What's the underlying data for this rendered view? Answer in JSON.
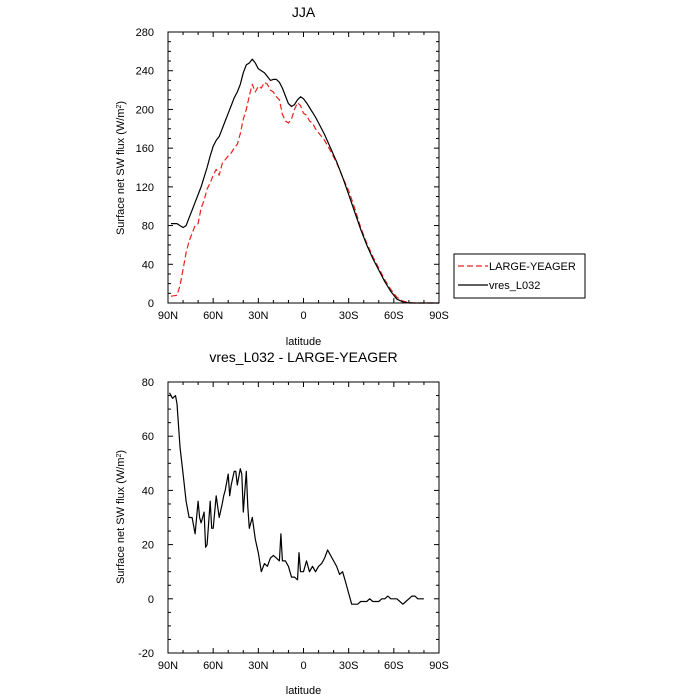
{
  "chart_data": [
    {
      "type": "line",
      "title": "JJA",
      "xlabel": "latitude",
      "ylabel": "Surface net SW flux (W/m",
      "ylabel_sup": "2",
      "ylabel_end": ")",
      "xlim": [
        90,
        -90
      ],
      "ylim": [
        0,
        280
      ],
      "x_ticks": [
        90,
        60,
        30,
        0,
        -30,
        -60,
        -90
      ],
      "x_tick_labels": [
        "90N",
        "60N",
        "30N",
        "0",
        "30S",
        "60S",
        "90S"
      ],
      "y_ticks": [
        0,
        40,
        80,
        120,
        160,
        200,
        240,
        280
      ],
      "y_tick_labels": [
        "0",
        "40",
        "80",
        "120",
        "160",
        "200",
        "240",
        "280"
      ],
      "legend": "outside-right",
      "series": [
        {
          "name": "LARGE-YEAGER",
          "color": "#e8231f",
          "dash": "dashed",
          "x": [
            88,
            84,
            82,
            80,
            78,
            76,
            74,
            72,
            70,
            68,
            66,
            64,
            62,
            60,
            58,
            56,
            54,
            52,
            50,
            48,
            46,
            44,
            42,
            40,
            38,
            36,
            34,
            32,
            30,
            28,
            26,
            24,
            22,
            20,
            18,
            16,
            14,
            12,
            10,
            8,
            6,
            4,
            2,
            0,
            -2,
            -4,
            -6,
            -8,
            -10,
            -14,
            -18,
            -22,
            -26,
            -30,
            -34,
            -38,
            -42,
            -46,
            -50,
            -54,
            -58,
            -62,
            -66,
            -70,
            -74,
            -78,
            -82,
            -86,
            -90
          ],
          "y": [
            7,
            8,
            18,
            35,
            52,
            64,
            72,
            80,
            82,
            98,
            106,
            118,
            124,
            132,
            138,
            132,
            144,
            148,
            152,
            155,
            160,
            164,
            175,
            190,
            200,
            214,
            226,
            218,
            224,
            222,
            228,
            226,
            220,
            218,
            213,
            210,
            195,
            188,
            186,
            190,
            200,
            207,
            204,
            196,
            194,
            188,
            186,
            180,
            176,
            168,
            157,
            145,
            130,
            116,
            98,
            78,
            62,
            48,
            36,
            24,
            14,
            6,
            2,
            0.5,
            0,
            0,
            0,
            0,
            0
          ]
        },
        {
          "name": "vres_L032",
          "color": "#000000",
          "dash": "solid",
          "x": [
            88,
            86,
            84,
            82,
            80,
            78,
            76,
            74,
            72,
            70,
            68,
            66,
            64,
            62,
            60,
            58,
            56,
            54,
            52,
            50,
            48,
            46,
            44,
            42,
            40,
            38,
            36,
            34,
            32,
            30,
            28,
            26,
            24,
            22,
            20,
            18,
            16,
            14,
            12,
            10,
            8,
            6,
            4,
            2,
            0,
            -2,
            -4,
            -6,
            -8,
            -10,
            -14,
            -18,
            -22,
            -26,
            -30,
            -34,
            -38,
            -42,
            -46,
            -50,
            -54,
            -58,
            -62,
            -66,
            -70,
            -74,
            -78,
            -82,
            -86,
            -90
          ],
          "y": [
            82,
            82,
            82,
            80,
            78,
            80,
            88,
            96,
            104,
            112,
            120,
            130,
            140,
            152,
            162,
            168,
            172,
            180,
            188,
            196,
            204,
            212,
            218,
            226,
            238,
            246,
            248,
            252,
            248,
            242,
            240,
            238,
            234,
            230,
            231,
            231,
            228,
            222,
            214,
            206,
            203,
            205,
            210,
            213,
            211,
            207,
            202,
            197,
            192,
            186,
            174,
            160,
            146,
            130,
            112,
            94,
            76,
            60,
            46,
            34,
            22,
            12,
            4,
            1,
            0,
            0,
            0,
            0,
            0,
            0
          ]
        }
      ]
    },
    {
      "type": "line",
      "title": "vres_L032 - LARGE-YEAGER",
      "xlabel": "latitude",
      "ylabel": "Surface net SW flux (W/m",
      "ylabel_sup": "2",
      "ylabel_end": ")",
      "xlim": [
        90,
        -90
      ],
      "ylim": [
        -20,
        80
      ],
      "x_ticks": [
        90,
        60,
        30,
        0,
        -30,
        -60,
        -90
      ],
      "x_tick_labels": [
        "90N",
        "60N",
        "30N",
        "0",
        "30S",
        "60S",
        "90S"
      ],
      "y_ticks": [
        -20,
        0,
        20,
        40,
        60,
        80
      ],
      "y_tick_labels": [
        "-20",
        "0",
        "20",
        "40",
        "60",
        "80"
      ],
      "series": [
        {
          "color": "#000000",
          "dash": "solid",
          "x": [
            89,
            87,
            85,
            84,
            83,
            82,
            80,
            78,
            76,
            74,
            72,
            70,
            69,
            68,
            66,
            65,
            64,
            62,
            61,
            60,
            58,
            57,
            56,
            54,
            53,
            52,
            50,
            49,
            48,
            46,
            45,
            44,
            42,
            41,
            40,
            38,
            37,
            36,
            34,
            32,
            30,
            28,
            26,
            24,
            22,
            20,
            18,
            16,
            15,
            14,
            12,
            10,
            8,
            6,
            4,
            3,
            2,
            0,
            -2,
            -4,
            -6,
            -8,
            -10,
            -12,
            -14,
            -16,
            -18,
            -20,
            -22,
            -24,
            -26,
            -28,
            -30,
            -32,
            -34,
            -36,
            -38,
            -40,
            -42,
            -44,
            -46,
            -48,
            -50,
            -52,
            -54,
            -56,
            -58,
            -60,
            -62,
            -64,
            -66,
            -68,
            -70,
            -72,
            -74,
            -76,
            -78,
            -80
          ],
          "y": [
            76,
            74,
            75,
            72,
            64,
            56,
            46,
            36,
            30,
            30,
            24,
            36,
            30,
            28,
            32,
            19,
            20,
            36,
            26,
            26,
            38,
            34,
            30,
            35,
            38,
            40,
            46,
            38,
            42,
            47,
            47,
            42,
            48,
            46,
            32,
            47,
            34,
            26,
            30,
            22,
            17,
            10,
            13,
            12,
            15,
            16,
            15,
            14,
            24,
            14,
            14,
            12,
            8,
            8,
            7,
            17,
            10,
            10,
            14,
            10,
            12,
            10,
            12,
            13,
            15,
            18,
            16,
            14,
            12,
            9,
            10,
            6,
            2,
            -2,
            -2,
            -2,
            -1,
            -1,
            -1,
            0,
            -1,
            -1,
            -1,
            0,
            0,
            1,
            0,
            0,
            0,
            -1,
            -2,
            -1,
            0,
            1,
            1,
            0,
            0,
            0
          ]
        }
      ]
    }
  ]
}
